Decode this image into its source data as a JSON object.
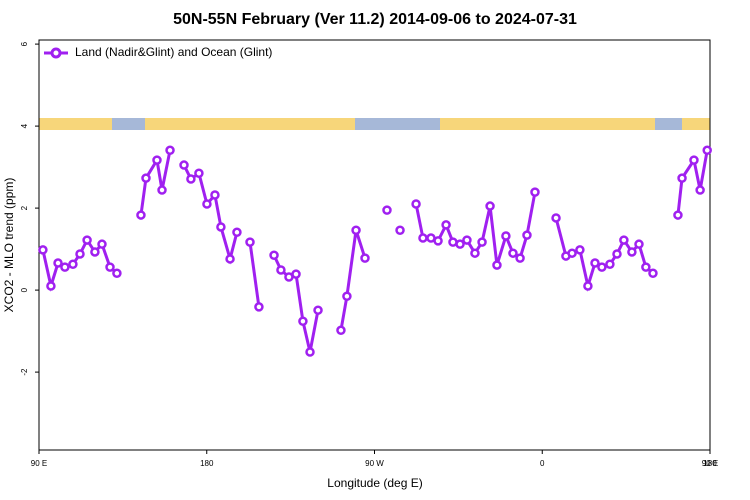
{
  "chart_data": {
    "type": "line",
    "title": "50N-55N February (Ver 11.2)   2014-09-06 to 2024-07-31",
    "xlabel": "Longitude (deg E)",
    "ylabel": "XCO2 - MLO trend (ppm)",
    "xlim": [
      90,
      450
    ],
    "ylim": [
      -3.9,
      6.1
    ],
    "xticks": [
      {
        "value": 90,
        "label": "90 E"
      },
      180,
      {
        "value": 270,
        "label": "90 W"
      },
      {
        "value": 360,
        "label": "0"
      },
      {
        "value": 450,
        "label": "90 E"
      },
      {
        "value": 540,
        "label": "180"
      }
    ],
    "yticks": [
      -2,
      0,
      2,
      4,
      6
    ],
    "legend": "upper left",
    "x": [
      92.1,
      96.4,
      100.2,
      103.9,
      108.2,
      112.0,
      115.8,
      120.0,
      123.8,
      128.1,
      131.8,
      null,
      144.7,
      147.4,
      153.3,
      156.0,
      160.3,
      null,
      167.8,
      171.5,
      175.8,
      180.1,
      184.4,
      187.6,
      192.5,
      196.2,
      null,
      203.2,
      208.0,
      null,
      216.1,
      219.8,
      224.1,
      227.9,
      231.6,
      235.4,
      239.7,
      null,
      252.0,
      255.2,
      260.1,
      264.9,
      null,
      276.7,
      null,
      283.7,
      null,
      292.3,
      296.0,
      300.3,
      304.1,
      308.4,
      312.1,
      315.9,
      319.6,
      323.9,
      327.7,
      332.0,
      335.7,
      340.5,
      344.3,
      348.1,
      351.8,
      356.1,
      null,
      367.4,
      372.7,
      376.0,
      380.2,
      384.5,
      388.3,
      392.0,
      396.3,
      400.1,
      403.8,
      408.1,
      411.9,
      415.6,
      419.4,
      null,
      432.8,
      435.0,
      441.4,
      444.7,
      448.5
    ],
    "series": [
      {
        "name": "Land (Nadir&Glint) and Ocean (Glint)",
        "color": "#a020f0",
        "values": [
          0.98,
          0.1,
          0.66,
          0.56,
          0.63,
          0.88,
          1.22,
          0.93,
          1.12,
          0.56,
          0.41,
          null,
          1.83,
          2.73,
          3.17,
          2.44,
          3.41,
          null,
          3.05,
          2.71,
          2.85,
          2.1,
          2.32,
          1.54,
          0.76,
          1.41,
          null,
          1.17,
          -0.41,
          null,
          0.85,
          0.49,
          0.32,
          0.39,
          -0.76,
          -1.51,
          -0.49,
          null,
          -0.98,
          -0.15,
          1.46,
          0.78,
          null,
          1.95,
          null,
          1.46,
          null,
          2.1,
          1.27,
          1.27,
          1.2,
          1.59,
          1.17,
          1.12,
          1.22,
          0.9,
          1.17,
          2.05,
          0.61,
          1.32,
          0.9,
          0.78,
          1.34,
          2.39,
          null,
          1.76,
          0.83,
          0.9,
          0.98,
          0.1,
          0.66,
          0.56,
          0.63,
          0.88,
          1.22,
          0.93,
          1.12,
          0.56,
          0.41,
          null,
          1.83,
          2.73,
          3.17,
          2.44,
          3.41
        ]
      }
    ]
  }
}
